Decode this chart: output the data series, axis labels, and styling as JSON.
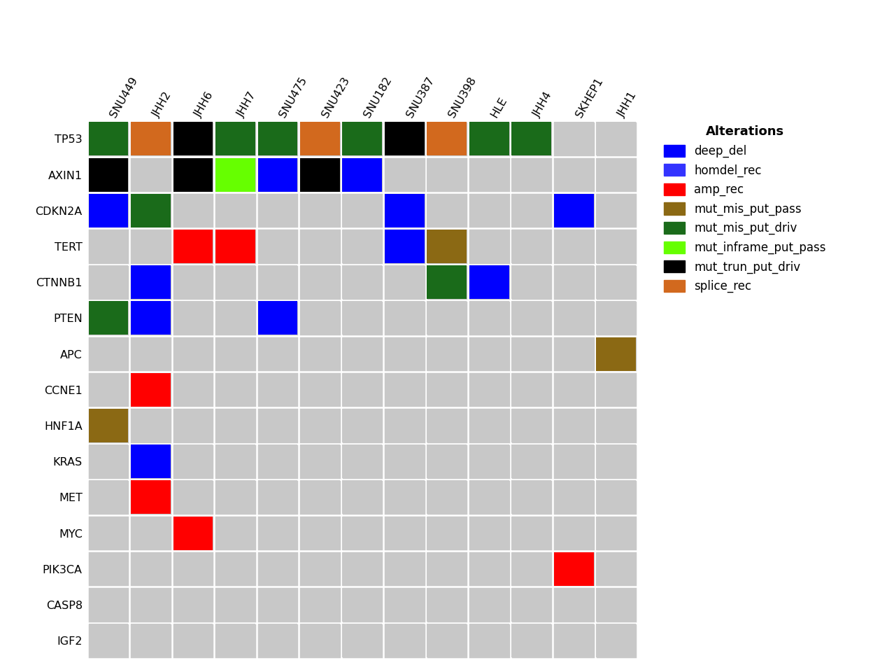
{
  "genes": [
    "TP53",
    "AXIN1",
    "CDKN2A",
    "TERT",
    "CTNNB1",
    "PTEN",
    "APC",
    "CCNE1",
    "HNF1A",
    "KRAS",
    "MET",
    "MYC",
    "PIK3CA",
    "CASP8",
    "IGF2"
  ],
  "samples": [
    "SNU449",
    "JHH2",
    "JHH6",
    "JHH7",
    "SNU475",
    "SNU423",
    "SNU182",
    "SNU387",
    "SNU398",
    "HLE",
    "JHH4",
    "SKHEP1",
    "JHH1"
  ],
  "alteration_colors": {
    "deep_del": "#0000FF",
    "homdel_rec": "#3333FF",
    "amp_rec": "#FF0000",
    "mut_mis_put_pass": "#8B6914",
    "mut_mis_put_driv": "#1A6B1A",
    "mut_inframe_put_pass": "#66FF00",
    "mut_trun_put_driv": "#000000",
    "splice_rec": "#D2691E"
  },
  "background_color": "#C8C8C8",
  "cells": [
    {
      "gene": "TP53",
      "sample": "SNU449",
      "alt": "mut_mis_put_driv"
    },
    {
      "gene": "TP53",
      "sample": "JHH2",
      "alt": "splice_rec"
    },
    {
      "gene": "TP53",
      "sample": "JHH6",
      "alt": "mut_trun_put_driv"
    },
    {
      "gene": "TP53",
      "sample": "JHH7",
      "alt": "mut_mis_put_driv"
    },
    {
      "gene": "TP53",
      "sample": "SNU475",
      "alt": "mut_mis_put_driv"
    },
    {
      "gene": "TP53",
      "sample": "SNU423",
      "alt": "splice_rec"
    },
    {
      "gene": "TP53",
      "sample": "SNU182",
      "alt": "mut_mis_put_driv"
    },
    {
      "gene": "TP53",
      "sample": "SNU387",
      "alt": "mut_trun_put_driv"
    },
    {
      "gene": "TP53",
      "sample": "SNU398",
      "alt": "splice_rec"
    },
    {
      "gene": "TP53",
      "sample": "HLE",
      "alt": "mut_mis_put_driv"
    },
    {
      "gene": "TP53",
      "sample": "JHH4",
      "alt": "mut_mis_put_driv"
    },
    {
      "gene": "AXIN1",
      "sample": "SNU449",
      "alt": "mut_trun_put_driv"
    },
    {
      "gene": "AXIN1",
      "sample": "JHH6",
      "alt": "mut_trun_put_driv"
    },
    {
      "gene": "AXIN1",
      "sample": "JHH7",
      "alt": "mut_inframe_put_pass"
    },
    {
      "gene": "AXIN1",
      "sample": "SNU475",
      "alt": "deep_del"
    },
    {
      "gene": "AXIN1",
      "sample": "SNU423",
      "alt": "mut_trun_put_driv"
    },
    {
      "gene": "AXIN1",
      "sample": "SNU182",
      "alt": "deep_del"
    },
    {
      "gene": "CDKN2A",
      "sample": "SNU449",
      "alt": "deep_del"
    },
    {
      "gene": "CDKN2A",
      "sample": "JHH2",
      "alt": "mut_mis_put_driv"
    },
    {
      "gene": "CDKN2A",
      "sample": "SNU387",
      "alt": "deep_del"
    },
    {
      "gene": "CDKN2A",
      "sample": "SKHEP1",
      "alt": "deep_del"
    },
    {
      "gene": "TERT",
      "sample": "JHH6",
      "alt": "amp_rec"
    },
    {
      "gene": "TERT",
      "sample": "JHH7",
      "alt": "amp_rec"
    },
    {
      "gene": "TERT",
      "sample": "SNU387",
      "alt": "deep_del"
    },
    {
      "gene": "TERT",
      "sample": "SNU398",
      "alt": "mut_mis_put_pass"
    },
    {
      "gene": "CTNNB1",
      "sample": "JHH2",
      "alt": "deep_del"
    },
    {
      "gene": "CTNNB1",
      "sample": "SNU398",
      "alt": "mut_mis_put_driv"
    },
    {
      "gene": "CTNNB1",
      "sample": "HLE",
      "alt": "deep_del"
    },
    {
      "gene": "PTEN",
      "sample": "SNU449",
      "alt": "mut_mis_put_driv"
    },
    {
      "gene": "PTEN",
      "sample": "JHH2",
      "alt": "deep_del"
    },
    {
      "gene": "PTEN",
      "sample": "SNU475",
      "alt": "deep_del"
    },
    {
      "gene": "APC",
      "sample": "JHH1",
      "alt": "mut_mis_put_pass"
    },
    {
      "gene": "CCNE1",
      "sample": "JHH2",
      "alt": "amp_rec"
    },
    {
      "gene": "HNF1A",
      "sample": "SNU449",
      "alt": "mut_mis_put_pass"
    },
    {
      "gene": "KRAS",
      "sample": "JHH2",
      "alt": "deep_del"
    },
    {
      "gene": "MET",
      "sample": "JHH2",
      "alt": "amp_rec"
    },
    {
      "gene": "MYC",
      "sample": "JHH6",
      "alt": "amp_rec"
    },
    {
      "gene": "PIK3CA",
      "sample": "SKHEP1",
      "alt": "amp_rec"
    }
  ],
  "legend_title": "Alterations",
  "legend_items": [
    {
      "label": "deep_del",
      "color": "#0000FF"
    },
    {
      "label": "homdel_rec",
      "color": "#3333FF"
    },
    {
      "label": "amp_rec",
      "color": "#FF0000"
    },
    {
      "label": "mut_mis_put_pass",
      "color": "#8B6914"
    },
    {
      "label": "mut_mis_put_driv",
      "color": "#1A6B1A"
    },
    {
      "label": "mut_inframe_put_pass",
      "color": "#66FF00"
    },
    {
      "label": "mut_trun_put_driv",
      "color": "#000000"
    },
    {
      "label": "splice_rec",
      "color": "#D2691E"
    }
  ],
  "label_fontsize": 12,
  "tick_fontsize": 11.5
}
